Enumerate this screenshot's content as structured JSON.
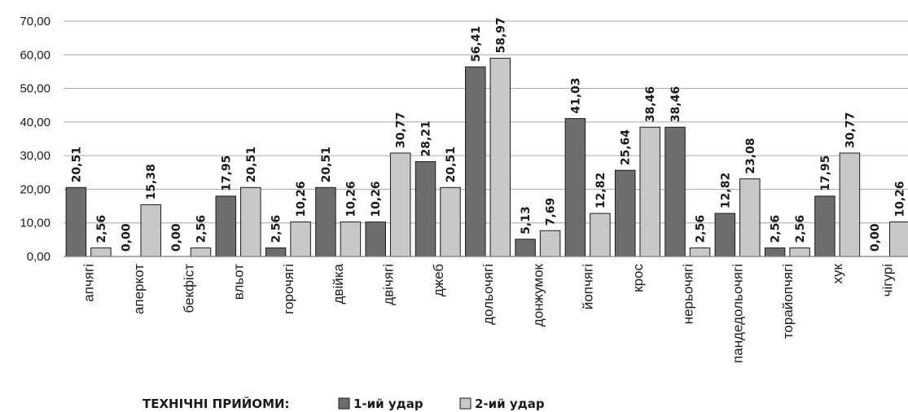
{
  "chart_data": {
    "type": "bar",
    "legend_title": "ТЕХНІЧНІ ПРИЙОМИ:",
    "legend_position": "bottom",
    "ylim": [
      0,
      70
    ],
    "y_ticks": [
      "0,00",
      "10,00",
      "20,00",
      "30,00",
      "40,00",
      "50,00",
      "60,00",
      "70,00"
    ],
    "grid": true,
    "categories": [
      "апчягі",
      "аперкот",
      "бекфіст",
      "вльот",
      "горочягі",
      "двійка",
      "двічягі",
      "джеб",
      "дольочягі",
      "донжумок",
      "йопчягі",
      "крос",
      "нерьочягі",
      "пандедольочягі",
      "торайопчягі",
      "хук",
      "чігурі"
    ],
    "series": [
      {
        "name": "1-ий удар",
        "color": "#6d6d6d",
        "values": [
          20.51,
          0.0,
          0.0,
          17.95,
          2.56,
          20.51,
          10.26,
          28.21,
          56.41,
          5.13,
          41.03,
          25.64,
          38.46,
          12.82,
          2.56,
          17.95,
          0.0
        ],
        "labels": [
          "20,51",
          "0,00",
          "0,00",
          "17,95",
          "2,56",
          "20,51",
          "10,26",
          "28,21",
          "56,41",
          "5,13",
          "41,03",
          "25,64",
          "38,46",
          "12,82",
          "2,56",
          "17,95",
          "0,00"
        ]
      },
      {
        "name": "2-ий удар",
        "color": "#c8c8c8",
        "values": [
          2.56,
          15.38,
          2.56,
          20.51,
          10.26,
          10.26,
          30.77,
          20.51,
          58.97,
          7.69,
          12.82,
          38.46,
          2.56,
          23.08,
          2.56,
          30.77,
          10.26
        ],
        "labels": [
          "2,56",
          "15,38",
          "2,56",
          "20,51",
          "10,26",
          "10,26",
          "30,77",
          "20,51",
          "58,97",
          "7,69",
          "12,82",
          "38,46",
          "2,56",
          "23,08",
          "2,56",
          "30,77",
          "10,26"
        ]
      }
    ]
  }
}
